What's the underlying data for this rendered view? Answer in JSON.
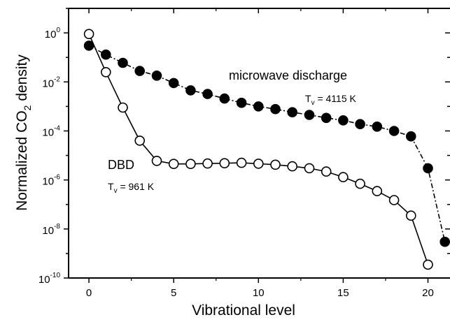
{
  "chart_data": {
    "type": "scatter",
    "xlabel": "Vibrational level",
    "ylabel_main": "Normalized CO",
    "ylabel_sub": "2",
    "ylabel_tail": " density",
    "yscale": "log",
    "xlim": [
      -1.2,
      21.3
    ],
    "ylim_exponent": [
      -10,
      1
    ],
    "x_ticks": [
      0,
      5,
      10,
      15,
      20
    ],
    "x_tick_labels": [
      "0",
      "5",
      "10",
      "15",
      "20"
    ],
    "y_ticks": [
      {
        "value": 1,
        "base": "10",
        "exp": "0"
      },
      {
        "value": 0.01,
        "base": "10",
        "exp": "-2"
      },
      {
        "value": 0.0001,
        "base": "10",
        "exp": "-4"
      },
      {
        "value": 1e-06,
        "base": "10",
        "exp": "-6"
      },
      {
        "value": 1e-08,
        "base": "10",
        "exp": "-8"
      },
      {
        "value": 1e-10,
        "base": "10",
        "exp": "-10"
      }
    ],
    "series": [
      {
        "name": "microwave discharge",
        "marker": "filled-circle",
        "line": "dash-dot",
        "x": [
          0,
          1,
          2,
          3,
          4,
          5,
          6,
          7,
          8,
          9,
          10,
          11,
          12,
          13,
          14,
          15,
          16,
          17,
          18,
          19,
          20,
          21
        ],
        "y": [
          0.3,
          0.13,
          0.06,
          0.028,
          0.018,
          0.009,
          0.0045,
          0.0032,
          0.0021,
          0.0014,
          0.001,
          0.00078,
          0.00058,
          0.00045,
          0.00034,
          0.00027,
          0.00019,
          0.00015,
          0.0001,
          6e-05,
          3e-06,
          3e-09
        ]
      },
      {
        "name": "DBD",
        "marker": "open-circle",
        "line": "solid",
        "x": [
          0,
          1,
          2,
          3,
          4,
          5,
          6,
          7,
          8,
          9,
          10,
          11,
          12,
          13,
          14,
          15,
          16,
          17,
          18,
          19,
          20
        ],
        "y": [
          0.9,
          0.025,
          0.0009,
          4e-05,
          6e-06,
          4.5e-06,
          4.5e-06,
          4.7e-06,
          4.8e-06,
          5e-06,
          4.6e-06,
          4.2e-06,
          3.6e-06,
          3e-06,
          2.2e-06,
          1.3e-06,
          7e-07,
          3.5e-07,
          1.5e-07,
          3.5e-08,
          3.5e-10
        ]
      }
    ],
    "annotations": [
      {
        "text": "microwave discharge",
        "tv_label": "T",
        "tv_sub": "v",
        "tv_value": " = 4115 K"
      },
      {
        "text": "DBD",
        "tv_label": "T",
        "tv_sub": "v",
        "tv_value": " = 961 K"
      }
    ]
  }
}
